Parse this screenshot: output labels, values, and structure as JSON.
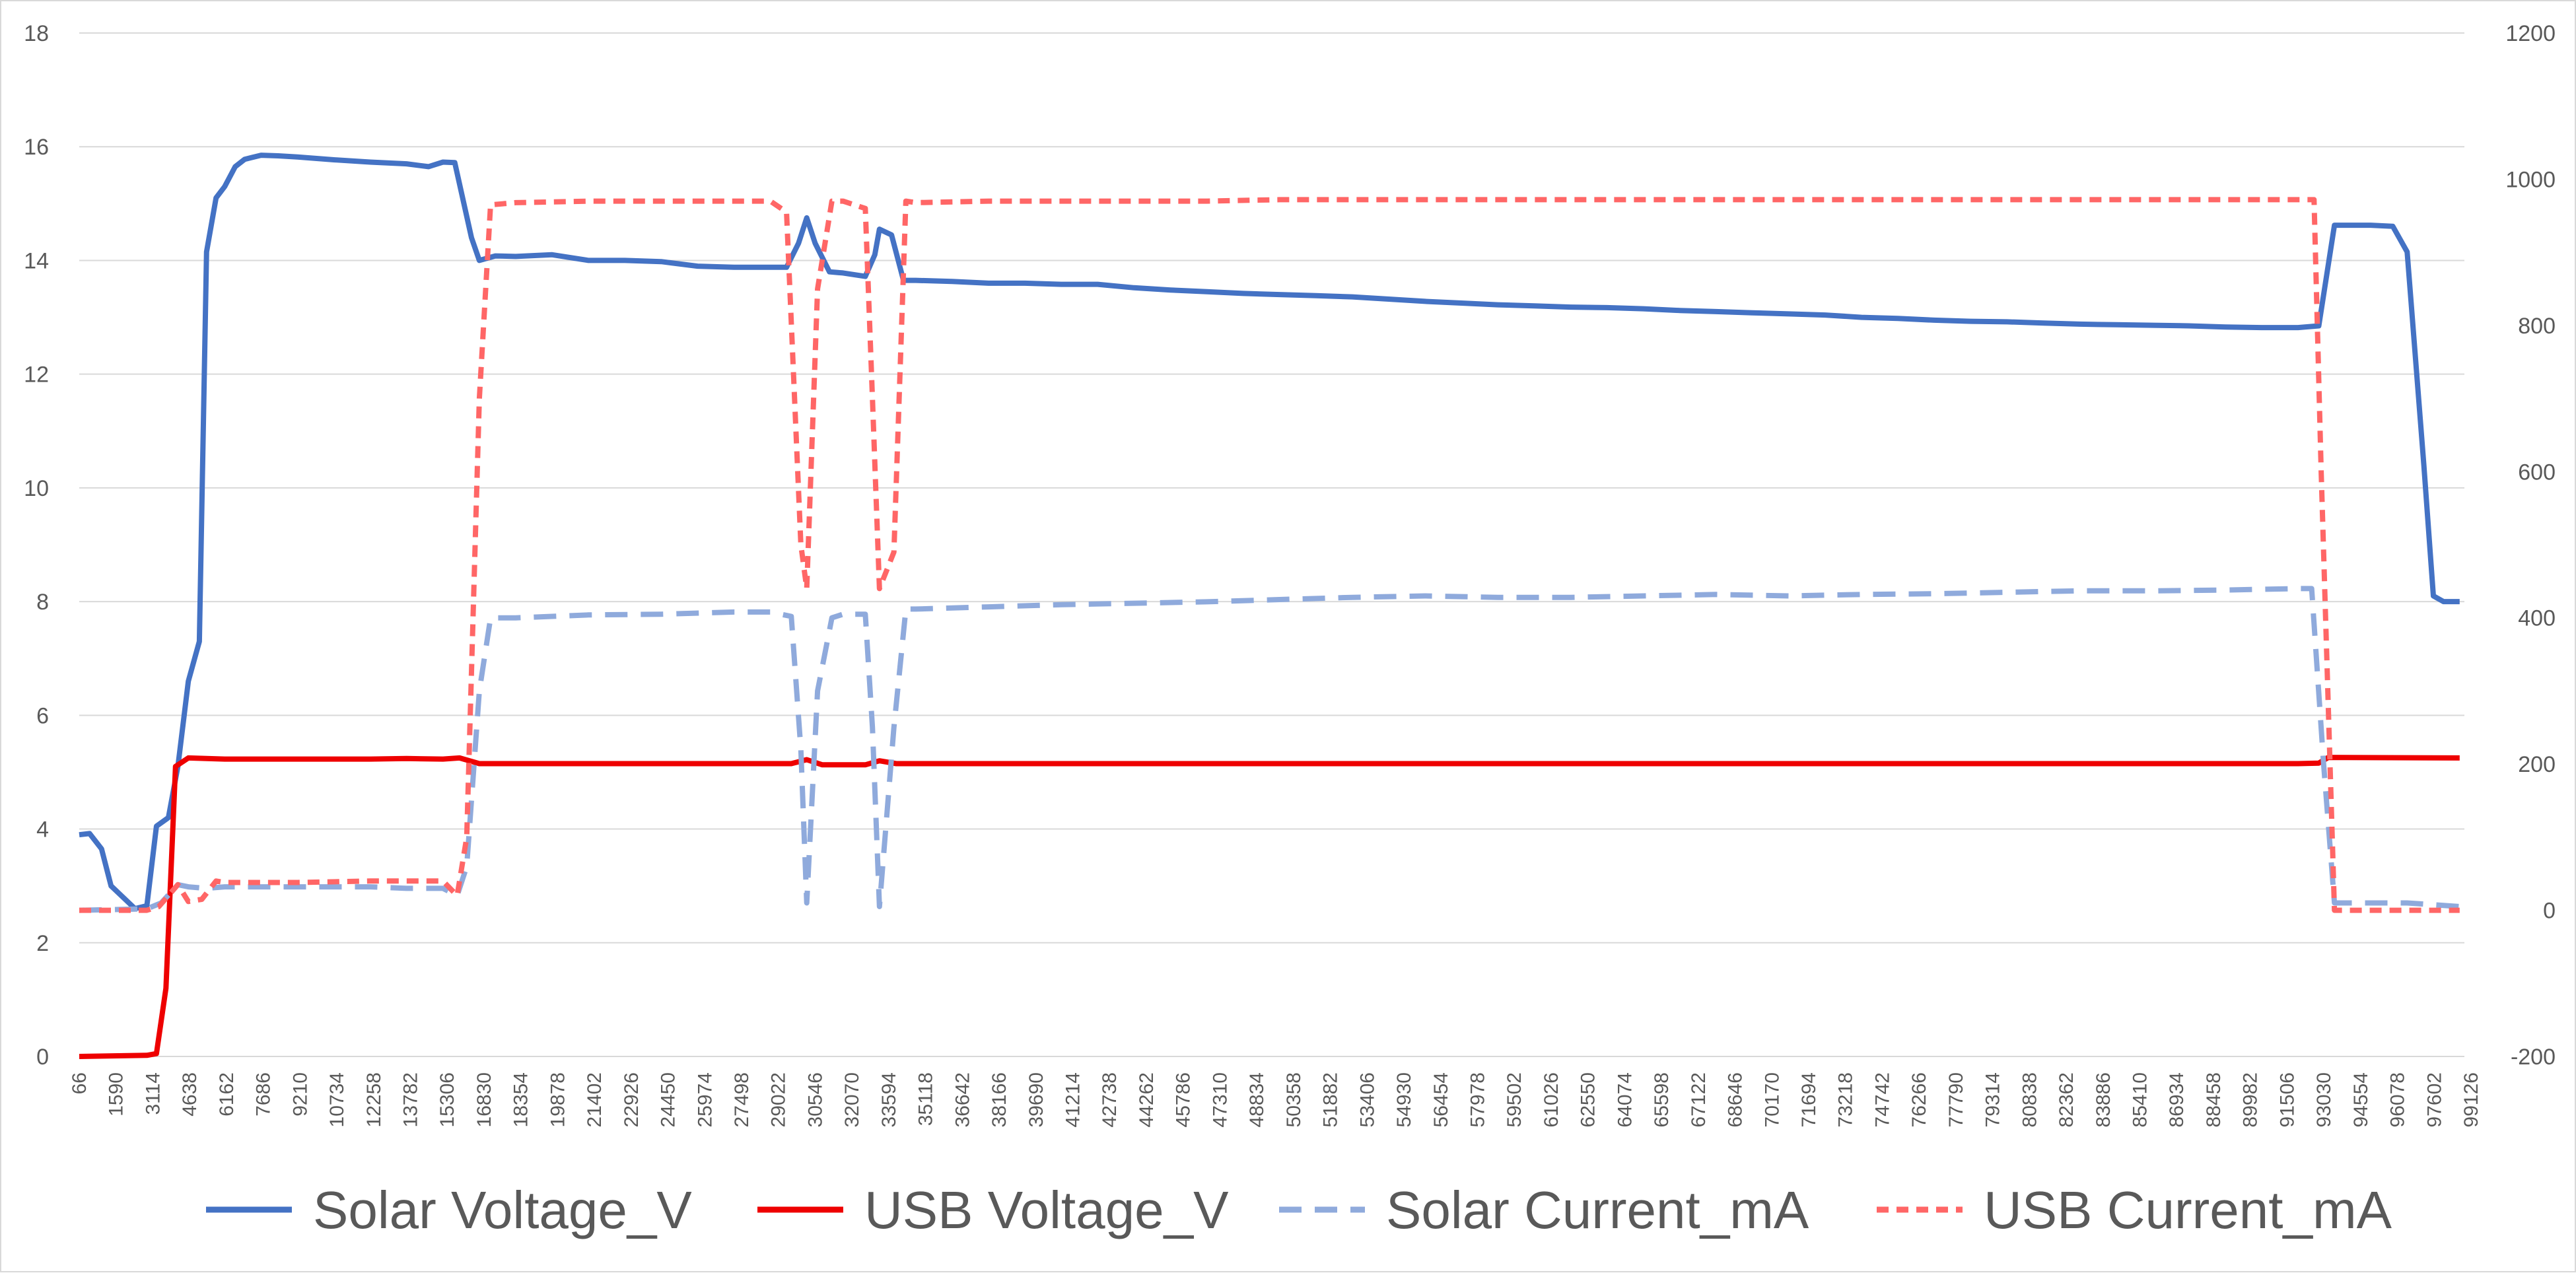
{
  "chart_data": {
    "type": "line",
    "title": "",
    "xlabel": "",
    "ylabel": "",
    "y_left": {
      "range": [
        0,
        18
      ],
      "ticks": [
        "0",
        "2",
        "4",
        "6",
        "8",
        "10",
        "12",
        "14",
        "16",
        "18"
      ]
    },
    "y_right": {
      "range": [
        -200,
        1200
      ],
      "ticks": [
        "-200",
        "0",
        "200",
        "400",
        "600",
        "800",
        "1000",
        "1200"
      ]
    },
    "x_tick_labels": [
      "66",
      "1590",
      "3114",
      "4638",
      "6162",
      "7686",
      "9210",
      "10734",
      "12258",
      "13782",
      "15306",
      "16830",
      "18354",
      "19878",
      "21402",
      "22926",
      "24450",
      "25974",
      "27498",
      "29022",
      "30546",
      "32070",
      "33594",
      "35118",
      "36642",
      "38166",
      "39690",
      "41214",
      "42738",
      "44262",
      "45786",
      "47310",
      "48834",
      "50358",
      "51882",
      "53406",
      "54930",
      "56454",
      "57978",
      "59502",
      "61026",
      "62550",
      "64074",
      "65598",
      "67122",
      "68646",
      "70170",
      "71694",
      "73218",
      "74742",
      "76266",
      "77790",
      "79314",
      "80838",
      "82362",
      "83886",
      "85410",
      "86934",
      "88458",
      "89982",
      "91506",
      "93030",
      "94554",
      "96078",
      "97602",
      "99126"
    ],
    "x_range": [
      66,
      100000
    ],
    "gridlines": "horizontal",
    "legend_position": "bottom",
    "series": [
      {
        "name": "Solar Voltage_V",
        "axis": "left",
        "color": "#4472c4",
        "dash": "solid",
        "points": [
          [
            66,
            3.9
          ],
          [
            500,
            3.92
          ],
          [
            1000,
            3.65
          ],
          [
            1400,
            3.0
          ],
          [
            1900,
            2.8
          ],
          [
            2400,
            2.6
          ],
          [
            2900,
            2.65
          ],
          [
            3300,
            4.05
          ],
          [
            3800,
            4.2
          ],
          [
            4200,
            5.1
          ],
          [
            4638,
            6.6
          ],
          [
            5100,
            7.3
          ],
          [
            5400,
            14.15
          ],
          [
            5800,
            15.1
          ],
          [
            6162,
            15.3
          ],
          [
            6600,
            15.65
          ],
          [
            7000,
            15.78
          ],
          [
            7686,
            15.85
          ],
          [
            8400,
            15.84
          ],
          [
            9210,
            15.82
          ],
          [
            10734,
            15.77
          ],
          [
            12258,
            15.73
          ],
          [
            13782,
            15.7
          ],
          [
            14700,
            15.65
          ],
          [
            15306,
            15.73
          ],
          [
            15800,
            15.72
          ],
          [
            16500,
            14.4
          ],
          [
            16830,
            14.0
          ],
          [
            17500,
            14.08
          ],
          [
            18354,
            14.07
          ],
          [
            19878,
            14.1
          ],
          [
            21402,
            14.0
          ],
          [
            22926,
            14.0
          ],
          [
            24450,
            13.98
          ],
          [
            25974,
            13.9
          ],
          [
            27498,
            13.88
          ],
          [
            29022,
            13.88
          ],
          [
            29700,
            13.88
          ],
          [
            30200,
            14.3
          ],
          [
            30546,
            14.75
          ],
          [
            30900,
            14.3
          ],
          [
            31500,
            13.8
          ],
          [
            32070,
            13.78
          ],
          [
            33000,
            13.72
          ],
          [
            33400,
            14.1
          ],
          [
            33594,
            14.55
          ],
          [
            34100,
            14.45
          ],
          [
            34600,
            13.65
          ],
          [
            35118,
            13.65
          ],
          [
            36642,
            13.63
          ],
          [
            38166,
            13.6
          ],
          [
            39690,
            13.6
          ],
          [
            41214,
            13.58
          ],
          [
            42738,
            13.58
          ],
          [
            44262,
            13.52
          ],
          [
            45786,
            13.48
          ],
          [
            47310,
            13.45
          ],
          [
            48834,
            13.42
          ],
          [
            50358,
            13.4
          ],
          [
            51882,
            13.38
          ],
          [
            53406,
            13.36
          ],
          [
            54930,
            13.32
          ],
          [
            56454,
            13.28
          ],
          [
            57978,
            13.25
          ],
          [
            59502,
            13.22
          ],
          [
            61026,
            13.2
          ],
          [
            62550,
            13.18
          ],
          [
            64074,
            13.17
          ],
          [
            65598,
            13.15
          ],
          [
            67122,
            13.12
          ],
          [
            68646,
            13.1
          ],
          [
            70170,
            13.08
          ],
          [
            71694,
            13.06
          ],
          [
            73218,
            13.04
          ],
          [
            74742,
            13.0
          ],
          [
            76266,
            12.98
          ],
          [
            77790,
            12.95
          ],
          [
            79314,
            12.93
          ],
          [
            80838,
            12.92
          ],
          [
            82362,
            12.9
          ],
          [
            83886,
            12.88
          ],
          [
            85410,
            12.87
          ],
          [
            86934,
            12.86
          ],
          [
            88458,
            12.85
          ],
          [
            89982,
            12.83
          ],
          [
            91506,
            12.82
          ],
          [
            93030,
            12.82
          ],
          [
            93900,
            12.85
          ],
          [
            94554,
            14.62
          ],
          [
            96078,
            14.62
          ],
          [
            97000,
            14.6
          ],
          [
            97602,
            14.15
          ],
          [
            98300,
            10.4
          ],
          [
            98700,
            8.1
          ],
          [
            99126,
            8.0
          ],
          [
            99800,
            8.0
          ]
        ]
      },
      {
        "name": "USB Voltage_V",
        "axis": "left",
        "color": "#ee0000",
        "dash": "solid",
        "points": [
          [
            66,
            0.0
          ],
          [
            2900,
            0.02
          ],
          [
            3300,
            0.05
          ],
          [
            3700,
            1.2
          ],
          [
            4100,
            5.1
          ],
          [
            4638,
            5.25
          ],
          [
            6162,
            5.23
          ],
          [
            9210,
            5.23
          ],
          [
            12258,
            5.23
          ],
          [
            13782,
            5.24
          ],
          [
            15306,
            5.23
          ],
          [
            16000,
            5.25
          ],
          [
            16830,
            5.15
          ],
          [
            18354,
            5.15
          ],
          [
            29022,
            5.15
          ],
          [
            29900,
            5.15
          ],
          [
            30546,
            5.22
          ],
          [
            31200,
            5.13
          ],
          [
            33000,
            5.13
          ],
          [
            33594,
            5.2
          ],
          [
            34300,
            5.15
          ],
          [
            35118,
            5.15
          ],
          [
            60000,
            5.15
          ],
          [
            80000,
            5.15
          ],
          [
            93030,
            5.15
          ],
          [
            93900,
            5.16
          ],
          [
            94300,
            5.26
          ],
          [
            99800,
            5.25
          ]
        ]
      },
      {
        "name": "Solar Current_mA",
        "axis": "right",
        "color": "#8faadc",
        "dash": "long",
        "points": [
          [
            66,
            0
          ],
          [
            2900,
            2
          ],
          [
            3500,
            10
          ],
          [
            4200,
            35
          ],
          [
            4638,
            32
          ],
          [
            5400,
            30
          ],
          [
            6162,
            32
          ],
          [
            9210,
            32
          ],
          [
            12258,
            32
          ],
          [
            13782,
            30
          ],
          [
            15306,
            30
          ],
          [
            15900,
            20
          ],
          [
            16300,
            60
          ],
          [
            16830,
            300
          ],
          [
            17300,
            400
          ],
          [
            18354,
            400
          ],
          [
            21402,
            404
          ],
          [
            24450,
            405
          ],
          [
            27498,
            408
          ],
          [
            29022,
            408
          ],
          [
            29900,
            402
          ],
          [
            30300,
            220
          ],
          [
            30546,
            10
          ],
          [
            31000,
            300
          ],
          [
            31600,
            400
          ],
          [
            32070,
            405
          ],
          [
            33000,
            405
          ],
          [
            33300,
            250
          ],
          [
            33594,
            5
          ],
          [
            34200,
            250
          ],
          [
            34700,
            412
          ],
          [
            35118,
            412
          ],
          [
            38166,
            415
          ],
          [
            41214,
            418
          ],
          [
            44262,
            420
          ],
          [
            47310,
            422
          ],
          [
            50358,
            425
          ],
          [
            53406,
            428
          ],
          [
            56454,
            430
          ],
          [
            59502,
            428
          ],
          [
            62550,
            428
          ],
          [
            65598,
            430
          ],
          [
            68646,
            432
          ],
          [
            71694,
            430
          ],
          [
            74742,
            432
          ],
          [
            77790,
            433
          ],
          [
            80838,
            435
          ],
          [
            83886,
            437
          ],
          [
            86934,
            437
          ],
          [
            89982,
            438
          ],
          [
            93030,
            440
          ],
          [
            93600,
            440
          ],
          [
            94100,
            200
          ],
          [
            94554,
            10
          ],
          [
            96078,
            10
          ],
          [
            97602,
            10
          ],
          [
            98500,
            8
          ],
          [
            99800,
            5
          ]
        ]
      },
      {
        "name": "USB Current_mA",
        "axis": "right",
        "color": "#ff6666",
        "dash": "short",
        "points": [
          [
            66,
            0
          ],
          [
            2900,
            0
          ],
          [
            3400,
            5
          ],
          [
            4200,
            35
          ],
          [
            4638,
            12
          ],
          [
            5200,
            15
          ],
          [
            5800,
            40
          ],
          [
            6162,
            38
          ],
          [
            9210,
            38
          ],
          [
            12258,
            40
          ],
          [
            13782,
            40
          ],
          [
            15306,
            40
          ],
          [
            15900,
            20
          ],
          [
            16300,
            100
          ],
          [
            16830,
            700
          ],
          [
            17300,
            965
          ],
          [
            18354,
            968
          ],
          [
            21402,
            970
          ],
          [
            24450,
            970
          ],
          [
            27498,
            970
          ],
          [
            29022,
            970
          ],
          [
            29700,
            955
          ],
          [
            30300,
            500
          ],
          [
            30546,
            440
          ],
          [
            31000,
            850
          ],
          [
            31600,
            970
          ],
          [
            32070,
            970
          ],
          [
            33000,
            960
          ],
          [
            33300,
            700
          ],
          [
            33594,
            440
          ],
          [
            34200,
            490
          ],
          [
            34700,
            970
          ],
          [
            35118,
            968
          ],
          [
            38166,
            970
          ],
          [
            41214,
            970
          ],
          [
            44262,
            970
          ],
          [
            47310,
            970
          ],
          [
            50358,
            972
          ],
          [
            53406,
            972
          ],
          [
            56454,
            972
          ],
          [
            59502,
            972
          ],
          [
            62550,
            972
          ],
          [
            65598,
            972
          ],
          [
            68646,
            972
          ],
          [
            71694,
            972
          ],
          [
            74742,
            972
          ],
          [
            77790,
            972
          ],
          [
            80838,
            972
          ],
          [
            83886,
            972
          ],
          [
            86934,
            972
          ],
          [
            89982,
            972
          ],
          [
            93030,
            972
          ],
          [
            93700,
            972
          ],
          [
            94000,
            600
          ],
          [
            94554,
            0
          ],
          [
            96078,
            0
          ],
          [
            97602,
            0
          ],
          [
            99800,
            0
          ]
        ]
      }
    ]
  }
}
